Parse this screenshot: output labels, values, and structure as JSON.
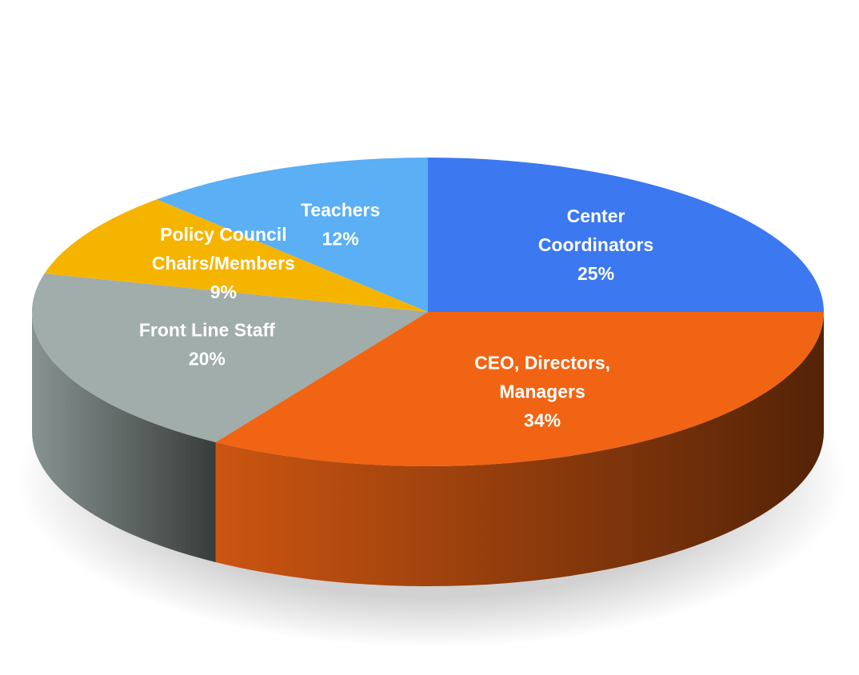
{
  "chart_data": {
    "type": "pie",
    "categories": [
      "Center Coordinators",
      "CEO, Directors, Managers",
      "Front Line Staff",
      "Policy Council Chairs/Members",
      "Teachers"
    ],
    "values": [
      25,
      34,
      20,
      9,
      12
    ],
    "value_labels": [
      "25%",
      "34%",
      "20%",
      "9%",
      "12%"
    ],
    "colors": [
      "#3c78f0",
      "#f06414",
      "#a0adaa",
      "#f5b400",
      "#5aaff5"
    ]
  }
}
